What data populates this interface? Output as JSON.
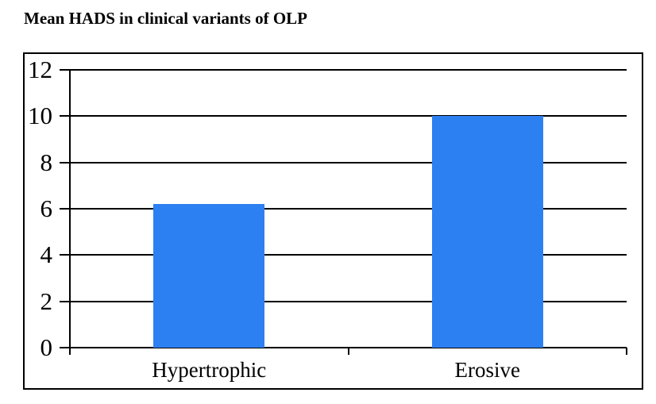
{
  "chart_data": {
    "type": "bar",
    "title": "Mean HADS in clinical variants of OLP",
    "categories": [
      "Hypertrophic",
      "Erosive"
    ],
    "values": [
      6.2,
      10
    ],
    "xlabel": "",
    "ylabel": "",
    "ylim": [
      0,
      12
    ],
    "yticks": [
      0,
      2,
      4,
      6,
      8,
      10,
      12
    ],
    "grid": true,
    "legend_position": "none",
    "bar_color": "#2D80F2"
  },
  "colors": {
    "bar": "#2D80F2",
    "axis": "#000000",
    "background": "#FFFFFF",
    "plot_border": "#000000"
  }
}
